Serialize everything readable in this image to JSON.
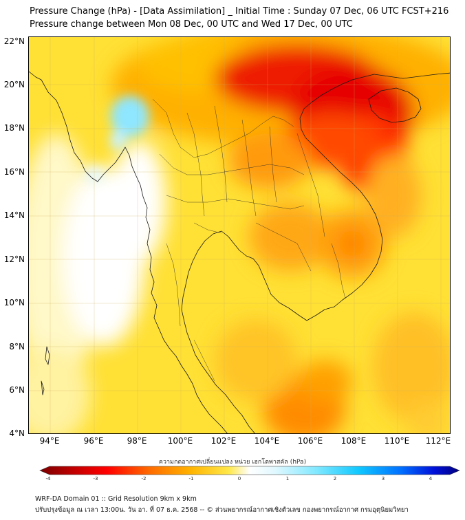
{
  "header": {
    "title": "Pressure Change (hPa) - [Data Assimilation] _ Initial Time : Sunday 07 Dec, 06 UTC FCST+216",
    "subtitle": "Pressure change between Mon 08 Dec, 00 UTC and Wed 17 Dec, 00 UTC"
  },
  "map": {
    "lat_labels": [
      "22°N",
      "20°N",
      "18°N",
      "16°N",
      "14°N",
      "12°N",
      "10°N",
      "8°N",
      "6°N",
      "4°N"
    ],
    "lon_labels": [
      "94°E",
      "96°E",
      "98°E",
      "100°E",
      "102°E",
      "104°E",
      "106°E",
      "108°E",
      "110°E",
      "112°E"
    ],
    "lat_range": [
      4,
      22.2
    ],
    "lon_range": [
      93,
      112.5
    ]
  },
  "colorbar": {
    "title": "ความกดอากาศเปลี่ยนแปลง หน่วย เฮกโตพาสคัล (hPa)",
    "ticks": [
      "-4",
      "-3",
      "-2",
      "-1",
      "0",
      "1",
      "2",
      "3",
      "4"
    ],
    "range": [
      -4,
      4
    ]
  },
  "footer": {
    "line1": "WRF-DA Domain 01 :: Grid Resolution 9km x 9km",
    "line2": "ปรับปรุงข้อมูล ณ เวลา 13:00น. วัน อา. ที่ 07 ธ.ค. 2568 -- © ส่วนพยากรณ์อากาศเชิงตัวเลข กองพยากรณ์อากาศ กรมอุตุนิยมวิทยา"
  },
  "colors": {
    "strong_fall": "#e60000",
    "moderate_fall": "#ff7a00",
    "weak_fall": "#ffd21f",
    "near_zero": "#ffffff",
    "rise": "#80e0ff"
  }
}
